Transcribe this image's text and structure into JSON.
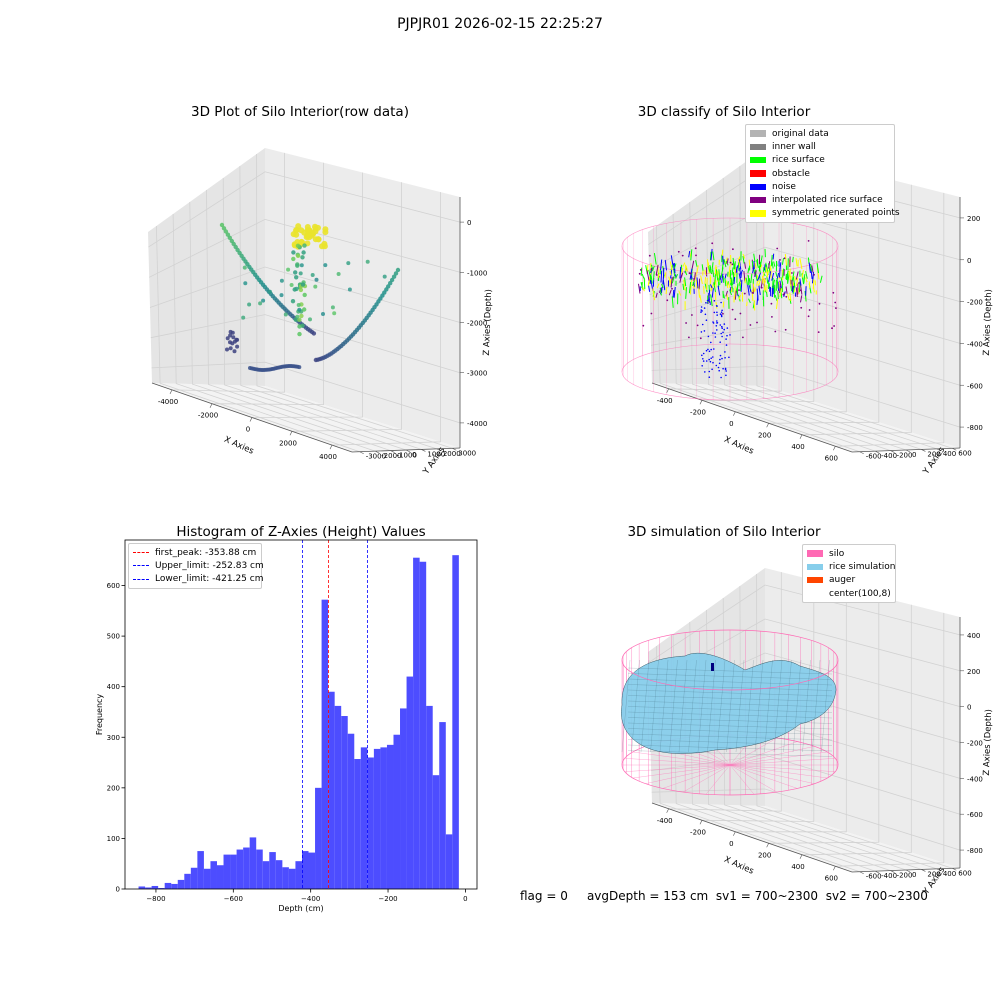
{
  "figure": {
    "suptitle": "PJPJR01 2026-02-15 22:25:27"
  },
  "panels": {
    "raw": {
      "title": "3D Plot of Silo Interior(row data)",
      "xlabel": "X Axies",
      "ylabel": "Y Axies",
      "zlabel": "Z Axies (Depth)",
      "xticks": [
        "-4000",
        "-2000",
        "0",
        "2000",
        "4000"
      ],
      "yticks": [
        "-3000",
        "-2000",
        "-1000",
        "0",
        "1000",
        "2000",
        "3000"
      ],
      "zticks": [
        "0",
        "-1000",
        "-2000",
        "-3000",
        "-4000"
      ]
    },
    "classify": {
      "title": "3D classify of Silo Interior",
      "xlabel": "X Axies",
      "ylabel": "Y Axies",
      "zlabel": "Z Axies (Depth)",
      "xticks": [
        "-400",
        "-200",
        "0",
        "200",
        "400",
        "600"
      ],
      "yticks": [
        "-600",
        "-400",
        "-200",
        "0",
        "200",
        "400",
        "600"
      ],
      "zticks": [
        "200",
        "0",
        "-200",
        "-400",
        "-600",
        "-800"
      ],
      "legend": [
        {
          "label": "original data",
          "color": "#b3b3b3"
        },
        {
          "label": "inner wall",
          "color": "#808080"
        },
        {
          "label": "rice surface",
          "color": "#00ff00"
        },
        {
          "label": "obstacle",
          "color": "#ff0000"
        },
        {
          "label": "noise",
          "color": "#0000ff"
        },
        {
          "label": "interpolated rice surface",
          "color": "#800080"
        },
        {
          "label": "symmetric generated points",
          "color": "#ffff00"
        }
      ]
    },
    "simulation": {
      "title": "3D simulation of Silo Interior",
      "xlabel": "X Axies",
      "ylabel": "Y Axies",
      "zlabel": "Z Axies (Depth)",
      "xticks": [
        "-400",
        "-200",
        "0",
        "200",
        "400",
        "600"
      ],
      "yticks": [
        "-600",
        "-400",
        "-200",
        "0",
        "200",
        "400",
        "600"
      ],
      "zticks": [
        "400",
        "200",
        "0",
        "-200",
        "-400",
        "-600",
        "-800"
      ],
      "legend": [
        {
          "label": "silo",
          "color": "#ff69b4"
        },
        {
          "label": "rice simulation",
          "color": "#87ceeb"
        },
        {
          "label": "auger",
          "color": "#ff4500"
        },
        {
          "label": "center(100,8)",
          "color": ""
        }
      ]
    }
  },
  "status_line": {
    "flag": "flag = 0",
    "avg_depth": "avgDepth = 153 cm",
    "sv1": "sv1 = 700~2300",
    "sv2": "sv2 = 700~2300"
  },
  "chart_data": {
    "type": "bar",
    "title": "Histogram of Z-Axies (Height) Values",
    "xlabel": "Depth (cm)",
    "ylabel": "Frequency",
    "xlim": [
      -880,
      30
    ],
    "ylim": [
      0,
      690
    ],
    "xticks": [
      -800,
      -600,
      -400,
      -200,
      0
    ],
    "yticks": [
      0,
      100,
      200,
      300,
      400,
      500,
      600
    ],
    "bar_color": "#4d4dff",
    "bin_width": 16.9,
    "bin_start": -845,
    "values": [
      5,
      3,
      6,
      2,
      12,
      10,
      18,
      30,
      42,
      75,
      40,
      55,
      47,
      68,
      68,
      78,
      82,
      102,
      78,
      55,
      73,
      57,
      43,
      40,
      55,
      75,
      72,
      200,
      572,
      390,
      362,
      342,
      307,
      257,
      280,
      260,
      277,
      280,
      285,
      305,
      357,
      420,
      655,
      647,
      362,
      225,
      330,
      108,
      660
    ],
    "lines": [
      {
        "label": "first_peak: -353.88 cm",
        "x": -353.88,
        "color": "#ff0000"
      },
      {
        "label": "Upper_limit: -252.83 cm",
        "x": -252.83,
        "color": "#0000ff"
      },
      {
        "label": "Lower_limit: -421.25 cm",
        "x": -421.25,
        "color": "#0000ff"
      }
    ],
    "legend_position": "upper-left",
    "grid": false
  }
}
